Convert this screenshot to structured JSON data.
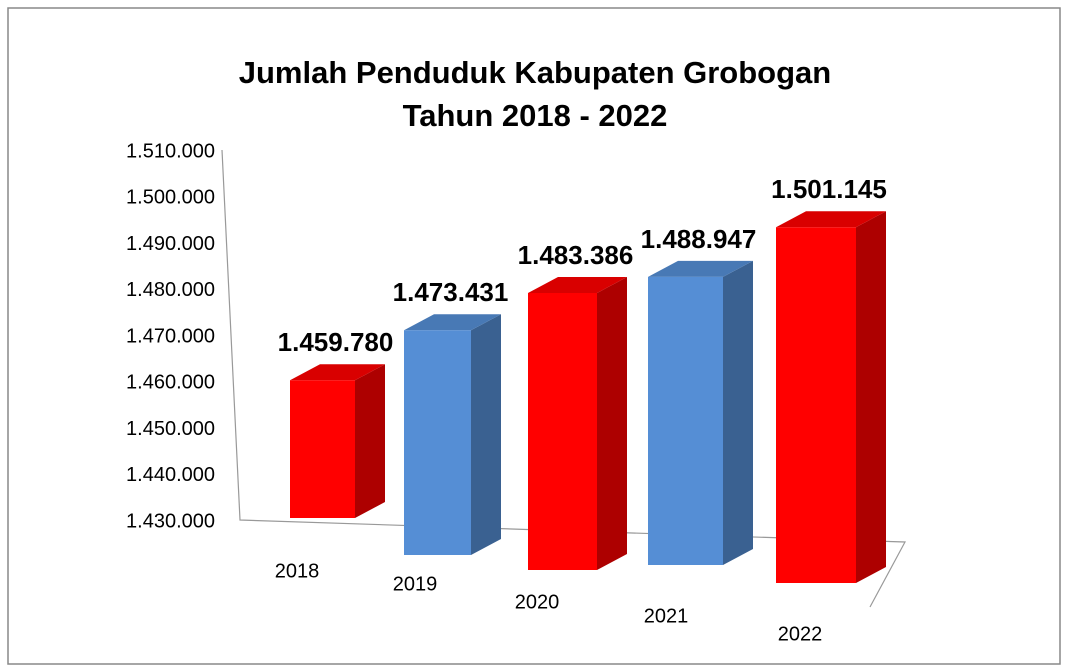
{
  "chart_data": {
    "type": "bar3d",
    "title": [
      "Jumlah Penduduk Kabupaten Grobogan",
      "Tahun 2018 - 2022"
    ],
    "categories": [
      "2018",
      "2019",
      "2020",
      "2021",
      "2022"
    ],
    "values": [
      1459780,
      1473431,
      1483386,
      1488947,
      1501145
    ],
    "value_labels": [
      "1.459.780",
      "1.473.431",
      "1.483.386",
      "1.488.947",
      "1.501.145"
    ],
    "colors": [
      "#ff0000",
      "#558ed5",
      "#ff0000",
      "#558ed5",
      "#ff0000"
    ],
    "ylim": [
      1430000,
      1510000
    ],
    "yticks": [
      {
        "value": 1430000,
        "label": "1.430.000"
      },
      {
        "value": 1440000,
        "label": "1.440.000"
      },
      {
        "value": 1450000,
        "label": "1.450.000"
      },
      {
        "value": 1460000,
        "label": "1.460.000"
      },
      {
        "value": 1470000,
        "label": "1.470.000"
      },
      {
        "value": 1480000,
        "label": "1.480.000"
      },
      {
        "value": 1490000,
        "label": "1.490.000"
      },
      {
        "value": 1500000,
        "label": "1.500.000"
      },
      {
        "value": 1510000,
        "label": "1.510.000"
      }
    ]
  }
}
